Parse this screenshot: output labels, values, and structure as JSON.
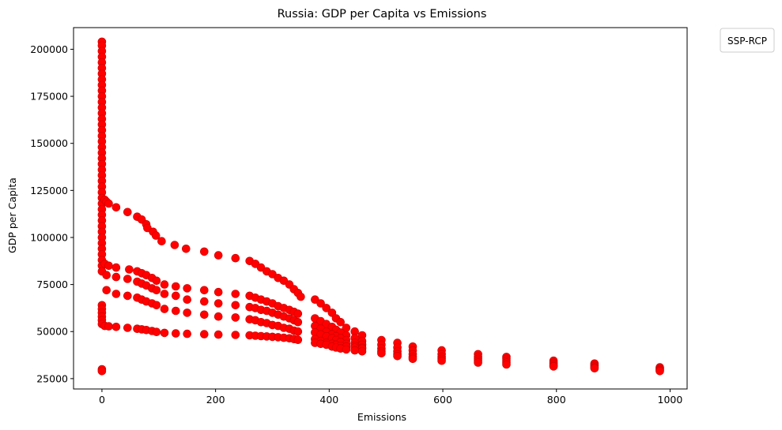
{
  "chart_data": {
    "type": "scatter",
    "title": "Russia: GDP per Capita vs Emissions",
    "xlabel": "Emissions",
    "ylabel": "GDP per Capita",
    "xlim": [
      -50,
      1030
    ],
    "ylim": [
      19500,
      211500
    ],
    "xticks": [
      0,
      200,
      400,
      600,
      800,
      1000
    ],
    "yticks": [
      25000,
      50000,
      75000,
      100000,
      125000,
      150000,
      175000,
      200000
    ],
    "grid": false,
    "legend": {
      "title": "SSP-RCP",
      "placement": "outside-top-right",
      "entries": []
    },
    "marker_color": "#ff0000",
    "marker_edge_color": "#cc0000",
    "series": [
      {
        "points": [
          [
            0,
            204000
          ],
          [
            0,
            202000
          ],
          [
            0,
            199000
          ],
          [
            0,
            196000
          ],
          [
            0,
            193000
          ],
          [
            0,
            190000
          ],
          [
            0,
            187000
          ],
          [
            0,
            184000
          ],
          [
            0,
            181000
          ],
          [
            0,
            178000
          ],
          [
            0,
            175000
          ],
          [
            0,
            172000
          ],
          [
            0,
            169000
          ],
          [
            0,
            166000
          ],
          [
            0,
            163000
          ],
          [
            0,
            160000
          ],
          [
            0,
            157000
          ],
          [
            0,
            154000
          ],
          [
            0,
            151000
          ],
          [
            0,
            148000
          ],
          [
            0,
            145000
          ],
          [
            0,
            142000
          ],
          [
            0,
            139000
          ],
          [
            0,
            136000
          ],
          [
            0,
            133000
          ],
          [
            0,
            130000
          ],
          [
            0,
            127000
          ],
          [
            0,
            124000
          ],
          [
            0,
            121000
          ],
          [
            0,
            118000
          ],
          [
            0,
            115000
          ],
          [
            0,
            112000
          ],
          [
            0,
            109000
          ],
          [
            0,
            106000
          ],
          [
            0,
            103000
          ],
          [
            0,
            100000
          ],
          [
            0,
            97000
          ],
          [
            0,
            94000
          ],
          [
            0,
            91000
          ],
          [
            0,
            88000
          ],
          [
            0,
            85000
          ],
          [
            0,
            82000
          ],
          [
            0,
            64000
          ],
          [
            0,
            62000
          ],
          [
            0,
            60000
          ],
          [
            0,
            58000
          ],
          [
            0,
            56000
          ],
          [
            0,
            54000
          ],
          [
            0,
            30000
          ],
          [
            0,
            29000
          ],
          [
            5,
            120000
          ],
          [
            8,
            119000
          ],
          [
            12,
            118000
          ],
          [
            25,
            116000
          ],
          [
            45,
            113500
          ],
          [
            62,
            111000
          ],
          [
            70,
            109500
          ],
          [
            78,
            107000
          ],
          [
            80,
            105000
          ],
          [
            90,
            103000
          ],
          [
            95,
            101000
          ],
          [
            105,
            98000
          ],
          [
            128,
            96000
          ],
          [
            148,
            94000
          ],
          [
            180,
            92500
          ],
          [
            205,
            90500
          ],
          [
            235,
            89000
          ],
          [
            260,
            87500
          ],
          [
            270,
            86000
          ],
          [
            280,
            84000
          ],
          [
            290,
            82000
          ],
          [
            300,
            80500
          ],
          [
            310,
            78500
          ],
          [
            320,
            77000
          ],
          [
            330,
            75000
          ],
          [
            338,
            72500
          ],
          [
            345,
            70500
          ],
          [
            350,
            68500
          ],
          [
            5,
            86000
          ],
          [
            12,
            85000
          ],
          [
            25,
            84000
          ],
          [
            48,
            83000
          ],
          [
            62,
            82000
          ],
          [
            70,
            81000
          ],
          [
            78,
            80000
          ],
          [
            88,
            78500
          ],
          [
            96,
            77000
          ],
          [
            110,
            75000
          ],
          [
            130,
            74000
          ],
          [
            150,
            73000
          ],
          [
            180,
            72000
          ],
          [
            205,
            71000
          ],
          [
            235,
            70000
          ],
          [
            260,
            69000
          ],
          [
            270,
            68000
          ],
          [
            280,
            67000
          ],
          [
            290,
            66000
          ],
          [
            300,
            65000
          ],
          [
            310,
            63500
          ],
          [
            320,
            62500
          ],
          [
            330,
            61500
          ],
          [
            338,
            60500
          ],
          [
            345,
            59500
          ],
          [
            8,
            80000
          ],
          [
            25,
            79000
          ],
          [
            45,
            78000
          ],
          [
            62,
            76500
          ],
          [
            70,
            75500
          ],
          [
            78,
            74500
          ],
          [
            88,
            73000
          ],
          [
            96,
            72000
          ],
          [
            110,
            70000
          ],
          [
            130,
            69000
          ],
          [
            150,
            67000
          ],
          [
            180,
            66000
          ],
          [
            205,
            65000
          ],
          [
            235,
            64000
          ],
          [
            260,
            63000
          ],
          [
            270,
            62500
          ],
          [
            280,
            61500
          ],
          [
            290,
            61000
          ],
          [
            300,
            60000
          ],
          [
            310,
            59000
          ],
          [
            320,
            58000
          ],
          [
            330,
            57000
          ],
          [
            338,
            56000
          ],
          [
            345,
            55000
          ],
          [
            8,
            72000
          ],
          [
            25,
            70000
          ],
          [
            45,
            69000
          ],
          [
            62,
            68000
          ],
          [
            70,
            67000
          ],
          [
            78,
            66000
          ],
          [
            88,
            65000
          ],
          [
            96,
            64000
          ],
          [
            110,
            62000
          ],
          [
            130,
            61000
          ],
          [
            150,
            60000
          ],
          [
            180,
            59000
          ],
          [
            205,
            58000
          ],
          [
            235,
            57500
          ],
          [
            260,
            56500
          ],
          [
            270,
            56000
          ],
          [
            280,
            55000
          ],
          [
            290,
            54500
          ],
          [
            300,
            53500
          ],
          [
            310,
            53000
          ],
          [
            320,
            52000
          ],
          [
            330,
            51500
          ],
          [
            338,
            50500
          ],
          [
            345,
            50000
          ],
          [
            5,
            53000
          ],
          [
            12,
            52800
          ],
          [
            25,
            52500
          ],
          [
            45,
            52000
          ],
          [
            62,
            51500
          ],
          [
            70,
            51200
          ],
          [
            78,
            50800
          ],
          [
            88,
            50300
          ],
          [
            96,
            49800
          ],
          [
            110,
            49300
          ],
          [
            130,
            49000
          ],
          [
            150,
            48800
          ],
          [
            180,
            48600
          ],
          [
            205,
            48400
          ],
          [
            235,
            48200
          ],
          [
            260,
            48000
          ],
          [
            270,
            47800
          ],
          [
            280,
            47600
          ],
          [
            290,
            47400
          ],
          [
            300,
            47200
          ],
          [
            310,
            47000
          ],
          [
            320,
            46700
          ],
          [
            330,
            46400
          ],
          [
            338,
            46000
          ],
          [
            345,
            45600
          ],
          [
            375,
            67000
          ],
          [
            385,
            65000
          ],
          [
            395,
            62500
          ],
          [
            405,
            60000
          ],
          [
            412,
            57000
          ],
          [
            420,
            55000
          ],
          [
            430,
            52000
          ],
          [
            445,
            50000
          ],
          [
            458,
            48000
          ],
          [
            375,
            57000
          ],
          [
            385,
            55500
          ],
          [
            395,
            54000
          ],
          [
            405,
            52500
          ],
          [
            412,
            51000
          ],
          [
            420,
            49500
          ],
          [
            430,
            48000
          ],
          [
            445,
            46500
          ],
          [
            458,
            45000
          ],
          [
            375,
            53000
          ],
          [
            385,
            51500
          ],
          [
            395,
            50000
          ],
          [
            405,
            48500
          ],
          [
            412,
            47500
          ],
          [
            420,
            46500
          ],
          [
            430,
            45500
          ],
          [
            445,
            44000
          ],
          [
            458,
            43000
          ],
          [
            375,
            49500
          ],
          [
            385,
            48500
          ],
          [
            395,
            47500
          ],
          [
            405,
            46500
          ],
          [
            412,
            45500
          ],
          [
            420,
            44500
          ],
          [
            430,
            43500
          ],
          [
            445,
            42500
          ],
          [
            458,
            41500
          ],
          [
            375,
            46000
          ],
          [
            385,
            45000
          ],
          [
            395,
            44000
          ],
          [
            405,
            43500
          ],
          [
            412,
            43000
          ],
          [
            420,
            42500
          ],
          [
            430,
            42000
          ],
          [
            445,
            41500
          ],
          [
            458,
            41000
          ],
          [
            375,
            44000
          ],
          [
            385,
            43500
          ],
          [
            395,
            43000
          ],
          [
            405,
            42000
          ],
          [
            412,
            41500
          ],
          [
            420,
            41000
          ],
          [
            430,
            40500
          ],
          [
            445,
            40000
          ],
          [
            458,
            39500
          ],
          [
            492,
            45500
          ],
          [
            492,
            43000
          ],
          [
            492,
            41000
          ],
          [
            492,
            39500
          ],
          [
            492,
            38500
          ],
          [
            520,
            44000
          ],
          [
            520,
            41500
          ],
          [
            520,
            39500
          ],
          [
            520,
            38000
          ],
          [
            520,
            37000
          ],
          [
            547,
            42000
          ],
          [
            547,
            40000
          ],
          [
            547,
            38000
          ],
          [
            547,
            36500
          ],
          [
            547,
            35500
          ],
          [
            598,
            40000
          ],
          [
            598,
            38000
          ],
          [
            598,
            36500
          ],
          [
            598,
            35500
          ],
          [
            598,
            34500
          ],
          [
            662,
            38000
          ],
          [
            662,
            36500
          ],
          [
            662,
            35500
          ],
          [
            662,
            34500
          ],
          [
            662,
            33500
          ],
          [
            712,
            36500
          ],
          [
            712,
            35500
          ],
          [
            712,
            34500
          ],
          [
            712,
            33500
          ],
          [
            712,
            32500
          ],
          [
            795,
            34500
          ],
          [
            795,
            33500
          ],
          [
            795,
            32800
          ],
          [
            795,
            32000
          ],
          [
            795,
            31500
          ],
          [
            867,
            33000
          ],
          [
            867,
            32300
          ],
          [
            867,
            31700
          ],
          [
            867,
            31000
          ],
          [
            867,
            30500
          ],
          [
            982,
            31000
          ],
          [
            982,
            30500
          ],
          [
            982,
            30000
          ],
          [
            982,
            29500
          ],
          [
            982,
            29000
          ]
        ]
      }
    ]
  }
}
